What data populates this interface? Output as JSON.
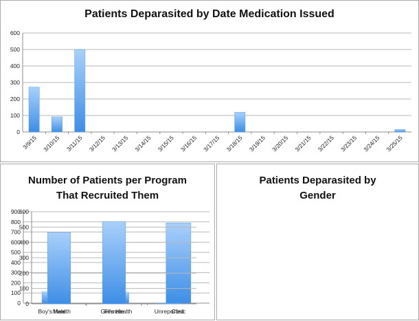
{
  "colors": {
    "bar_top": "#a9d0fb",
    "bar_bottom": "#3d8ee6",
    "grid": "#b8b8b8",
    "axis": "#8c8c8c"
  },
  "chart_data": [
    {
      "id": "top",
      "type": "bar",
      "title": "Patients Deparasited by Date Medication Issued",
      "categories": [
        "3/9/15",
        "3/10/15",
        "3/11/15",
        "3/12/15",
        "3/13/15",
        "3/14/15",
        "3/15/15",
        "3/16/15",
        "3/17/15",
        "3/18/15",
        "3/19/15",
        "3/20/15",
        "3/21/15",
        "3/22/15",
        "3/23/15",
        "3/24/15",
        "3/25/15"
      ],
      "values": [
        272,
        92,
        500,
        0,
        0,
        0,
        0,
        0,
        0,
        120,
        0,
        0,
        0,
        0,
        0,
        0,
        15
      ],
      "ylim": [
        0,
        600
      ],
      "yticks": [
        0,
        100,
        200,
        300,
        400,
        500,
        600
      ],
      "grid": true,
      "xlabel": "",
      "ylabel": ""
    },
    {
      "id": "bl",
      "type": "bar",
      "title": "Number of Patients per Program That Recruited Them",
      "categories": [
        "Boy's Health",
        "Girl's Health",
        "Clinic"
      ],
      "values": [
        110,
        105,
        790
      ],
      "ylim": [
        0,
        900
      ],
      "yticks": [
        0,
        100,
        200,
        300,
        400,
        500,
        600,
        700,
        800,
        900
      ],
      "grid": true,
      "xlabel": "",
      "ylabel": ""
    },
    {
      "id": "br",
      "type": "bar",
      "title": "Patients Deparasited by Gender",
      "categories": [
        "Male",
        "Female",
        "Unreported"
      ],
      "values": [
        465,
        535,
        3
      ],
      "ylim": [
        0,
        600
      ],
      "yticks": [
        0,
        100,
        200,
        300,
        400,
        500,
        600
      ],
      "grid": true,
      "xlabel": "",
      "ylabel": ""
    }
  ]
}
